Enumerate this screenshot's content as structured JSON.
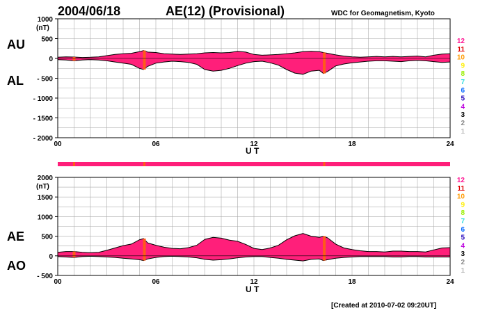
{
  "header": {
    "date": "2004/06/18",
    "title": "AE(12) (Provisional)",
    "source": "WDC for Geomagnetism, Kyoto"
  },
  "footer": {
    "created": "[Created at 2010-07-02 09:20UT]"
  },
  "station_scale": {
    "labels": [
      "12",
      "11",
      "10",
      "9",
      "8",
      "7",
      "6",
      "5",
      "4",
      "3",
      "2",
      "1"
    ],
    "colors": [
      "#ff1493",
      "#e00000",
      "#ff9900",
      "#ffee00",
      "#99ee00",
      "#33dddd",
      "#0066ff",
      "#2200bb",
      "#bb00dd",
      "#000000",
      "#888888",
      "#bbbbbb"
    ]
  },
  "colors": {
    "fill": "#ff1f7a",
    "orange": "#ff5a1a",
    "grid": "#aaaaaa"
  },
  "chart_data": [
    {
      "type": "area",
      "name": "AU/AL",
      "series_labels": [
        "AU",
        "AL"
      ],
      "unit_label": "(nT)",
      "xlabel": "U T",
      "xlim": [
        0,
        24
      ],
      "ylim": [
        -2000,
        1000
      ],
      "yticks": [
        "1000",
        "500",
        "0",
        "- 500",
        "- 1000",
        "- 1500",
        "- 2000"
      ],
      "ytick_values": [
        1000,
        500,
        0,
        -500,
        -1000,
        -1500,
        -2000
      ],
      "xticks": [
        "00",
        "06",
        "12",
        "18",
        "24"
      ],
      "xtick_values": [
        0,
        6,
        12,
        18,
        24
      ],
      "grid": true,
      "hours": [
        0,
        0.5,
        1,
        1.5,
        2,
        2.5,
        3,
        3.5,
        4,
        4.5,
        5,
        5.25,
        5.5,
        6,
        6.5,
        7,
        7.5,
        8,
        8.5,
        9,
        9.5,
        10,
        10.5,
        11,
        11.5,
        12,
        12.5,
        13,
        13.5,
        14,
        14.5,
        15,
        15.5,
        16,
        16.25,
        16.5,
        17,
        17.5,
        18,
        18.5,
        19,
        19.5,
        20,
        20.5,
        21,
        21.5,
        22,
        22.5,
        23,
        23.5,
        24
      ],
      "au": [
        30,
        40,
        35,
        25,
        30,
        40,
        70,
        100,
        120,
        130,
        170,
        200,
        160,
        150,
        120,
        110,
        100,
        110,
        120,
        140,
        150,
        140,
        150,
        180,
        160,
        100,
        80,
        90,
        100,
        120,
        140,
        170,
        180,
        170,
        150,
        130,
        90,
        60,
        40,
        30,
        40,
        50,
        40,
        50,
        40,
        50,
        60,
        40,
        80,
        110,
        120
      ],
      "al": [
        -30,
        -40,
        -60,
        -40,
        -30,
        -40,
        -60,
        -90,
        -120,
        -150,
        -250,
        -280,
        -200,
        -120,
        -90,
        -70,
        -80,
        -100,
        -150,
        -280,
        -320,
        -300,
        -250,
        -180,
        -120,
        -80,
        -70,
        -110,
        -170,
        -280,
        -370,
        -400,
        -320,
        -300,
        -380,
        -330,
        -190,
        -140,
        -110,
        -90,
        -70,
        -60,
        -60,
        -70,
        -80,
        -60,
        -50,
        -60,
        -80,
        -100,
        -90
      ],
      "highlight_hours": [
        1,
        5.3,
        16.3
      ]
    },
    {
      "type": "area",
      "name": "AE/AO",
      "series_labels": [
        "AE",
        "AO"
      ],
      "unit_label": "(nT)",
      "xlabel": "U T",
      "xlim": [
        0,
        24
      ],
      "ylim": [
        -500,
        2000
      ],
      "yticks": [
        "2000",
        "1500",
        "1000",
        "500",
        "0",
        "- 500"
      ],
      "ytick_values": [
        2000,
        1500,
        1000,
        500,
        0,
        -500
      ],
      "xticks": [
        "00",
        "06",
        "12",
        "18",
        "24"
      ],
      "xtick_values": [
        0,
        6,
        12,
        18,
        24
      ],
      "grid": true,
      "hours": [
        0,
        0.5,
        1,
        1.5,
        2,
        2.5,
        3,
        3.5,
        4,
        4.5,
        5,
        5.25,
        5.5,
        6,
        6.5,
        7,
        7.5,
        8,
        8.5,
        9,
        9.5,
        10,
        10.5,
        11,
        11.5,
        12,
        12.5,
        13,
        13.5,
        14,
        14.5,
        15,
        15.5,
        16,
        16.25,
        16.5,
        17,
        17.5,
        18,
        18.5,
        19,
        19.5,
        20,
        20.5,
        21,
        21.5,
        22,
        22.5,
        23,
        23.5,
        24
      ],
      "ae": [
        90,
        110,
        110,
        90,
        80,
        90,
        140,
        200,
        260,
        300,
        410,
        440,
        330,
        270,
        220,
        190,
        180,
        210,
        270,
        420,
        470,
        450,
        400,
        370,
        290,
        190,
        160,
        200,
        270,
        410,
        510,
        570,
        500,
        470,
        500,
        460,
        300,
        200,
        160,
        130,
        110,
        110,
        100,
        120,
        120,
        110,
        110,
        100,
        150,
        200,
        210
      ],
      "ao": [
        -20,
        -30,
        -40,
        -20,
        -10,
        -20,
        -30,
        -40,
        -60,
        -80,
        -100,
        -120,
        -80,
        -40,
        -20,
        -10,
        -20,
        -30,
        -50,
        -90,
        -110,
        -100,
        -80,
        -50,
        -30,
        -20,
        -20,
        -40,
        -60,
        -90,
        -110,
        -130,
        -90,
        -80,
        -120,
        -100,
        -60,
        -40,
        -30,
        -20,
        -20,
        -20,
        -20,
        -30,
        -30,
        -20,
        -20,
        -30,
        -30,
        -30,
        -30
      ],
      "highlight_hours": [
        1,
        5.3,
        16.3
      ]
    }
  ],
  "station_bar": {
    "color": "#ff1f7a",
    "marks_hours": [
      1,
      5.3,
      16.3
    ]
  }
}
